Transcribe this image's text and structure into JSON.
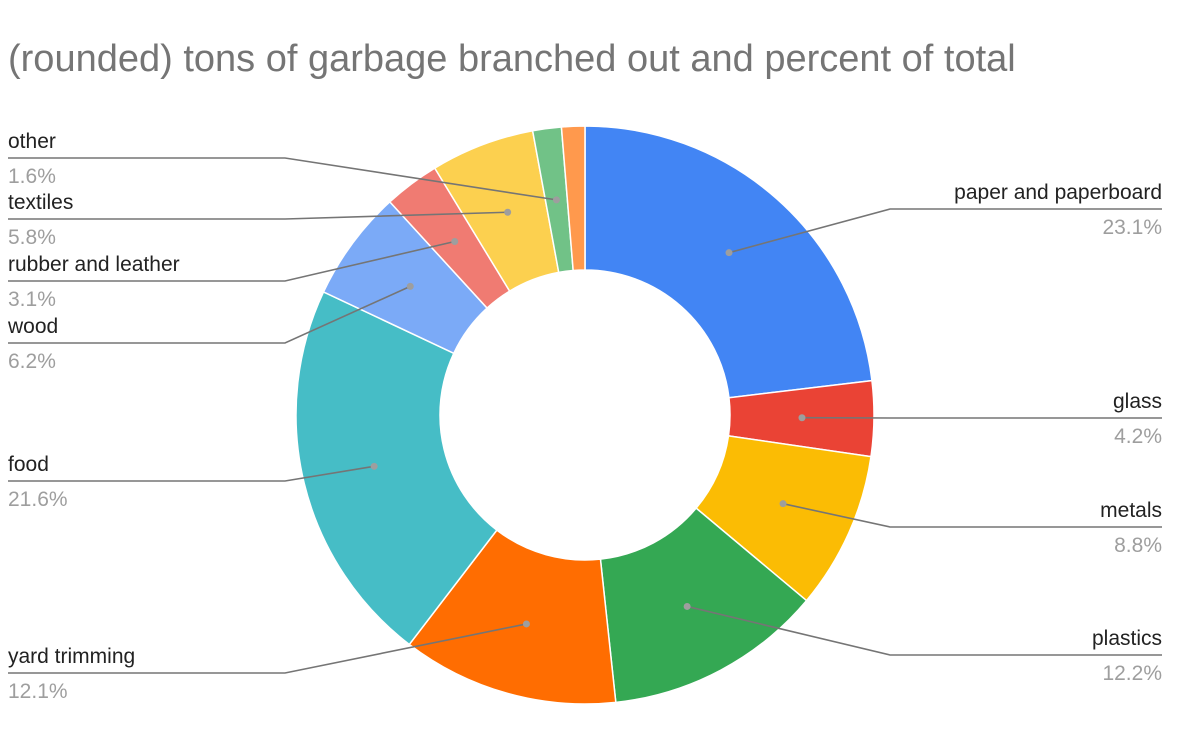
{
  "chart_data": {
    "type": "pie",
    "variant": "donut",
    "title": "(rounded) tons of garbage branched out and percent of total",
    "slices": [
      {
        "label": "paper and paperboard",
        "value": 23.1,
        "percent_label": "23.1%",
        "color": "#4285F4",
        "side": "right"
      },
      {
        "label": "glass",
        "value": 4.2,
        "percent_label": "4.2%",
        "color": "#EA4335",
        "side": "right"
      },
      {
        "label": "metals",
        "value": 8.8,
        "percent_label": "8.8%",
        "color": "#FBBC04",
        "side": "right"
      },
      {
        "label": "plastics",
        "value": 12.2,
        "percent_label": "12.2%",
        "color": "#34A853",
        "side": "right"
      },
      {
        "label": "yard trimming",
        "value": 12.1,
        "percent_label": "12.1%",
        "color": "#FF6D01",
        "side": "left"
      },
      {
        "label": "food",
        "value": 21.6,
        "percent_label": "21.6%",
        "color": "#46BDC6",
        "side": "left"
      },
      {
        "label": "wood",
        "value": 6.2,
        "percent_label": "6.2%",
        "color": "#7BAAF7",
        "side": "left"
      },
      {
        "label": "rubber and leather",
        "value": 3.1,
        "percent_label": "3.1%",
        "color": "#F07B72",
        "side": "left"
      },
      {
        "label": "textiles",
        "value": 5.8,
        "percent_label": "5.8%",
        "color": "#FCD04F",
        "side": "left"
      },
      {
        "label": "other",
        "value": 1.6,
        "percent_label": "1.6%",
        "color": "#71C287",
        "side": "left"
      },
      {
        "label": "",
        "value": 1.3,
        "percent_label": "",
        "color": "#FF994D",
        "side": "none"
      }
    ],
    "legend": "none"
  }
}
